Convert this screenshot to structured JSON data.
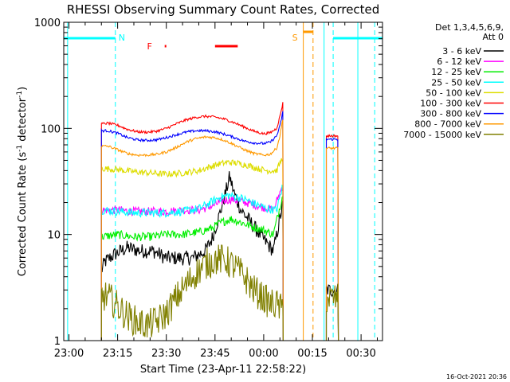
{
  "chart_data": {
    "type": "line",
    "title": "RHESSI Observing Summary Count Rates, Corrected",
    "xlabel": "Start Time (23-Apr-11 22:58:22)",
    "ylabel_main": "Corrected Count Rate (s",
    "ylabel_sup1": "-1",
    "ylabel_mid": " detector",
    "ylabel_sup2": "-1",
    "ylabel_end": ")",
    "x_unit": "minutes since 23:00",
    "xlim": [
      -1.6,
      96.6
    ],
    "ylim": [
      1,
      1000
    ],
    "y_scale": "log",
    "x_ticks": [
      {
        "x": 0,
        "label": "23:00"
      },
      {
        "x": 15,
        "label": "23:15"
      },
      {
        "x": 30,
        "label": "23:30"
      },
      {
        "x": 45,
        "label": "23:45"
      },
      {
        "x": 60,
        "label": "00:00"
      },
      {
        "x": 75,
        "label": "00:15"
      },
      {
        "x": 90,
        "label": "00:30"
      }
    ],
    "y_ticks": [
      {
        "y": 1,
        "label": "1"
      },
      {
        "y": 10,
        "label": "10"
      },
      {
        "y": 100,
        "label": "100"
      },
      {
        "y": 1000,
        "label": "1000"
      }
    ],
    "legend_header": [
      "Det 1,3,4,5,6,9,",
      "Att 0"
    ],
    "legend_position": "right",
    "footer_timestamp": "16-Oct-2021 20:36",
    "data_gap": [
      66.2,
      79.3
    ],
    "series": [
      {
        "name": "3 - 6 keV",
        "color": "#000000",
        "noise": 0.07,
        "segments": [
          {
            "x": [
              10,
              11,
              14,
              18,
              22,
              26,
              30,
              34,
              38,
              42,
              44,
              46,
              48,
              49.5,
              51,
              53,
              56,
              60,
              63,
              66
            ],
            "y": [
              4.5,
              5.5,
              6.5,
              7.5,
              7,
              7,
              6,
              6,
              6,
              7,
              9,
              14,
              23,
              35,
              24,
              17,
              13,
              9,
              7,
              20
            ]
          },
          {
            "x": [
              79.3,
              83
            ],
            "y": [
              3,
              3
            ]
          }
        ]
      },
      {
        "name": "6 - 12 keV",
        "color": "#ff00ff",
        "noise": 0.04,
        "segments": [
          {
            "x": [
              10,
              15,
              20,
              25,
              30,
              35,
              40,
              44,
              47,
              50,
              53,
              56,
              60,
              63,
              66
            ],
            "y": [
              17,
              17,
              16.5,
              16.5,
              16.5,
              17,
              17,
              18.5,
              20.5,
              21.5,
              20.5,
              19.5,
              18,
              17,
              30
            ]
          }
        ]
      },
      {
        "name": "12 - 25 keV",
        "color": "#00ee00",
        "noise": 0.04,
        "segments": [
          {
            "x": [
              10,
              15,
              20,
              25,
              30,
              35,
              40,
              44,
              47,
              50,
              53,
              56,
              60,
              63,
              66
            ],
            "y": [
              9.5,
              10,
              9.5,
              9.5,
              10,
              10,
              10.5,
              11.5,
              13,
              14,
              13,
              12,
              11,
              10,
              25
            ]
          }
        ]
      },
      {
        "name": "25 - 50 keV",
        "color": "#00ffff",
        "noise": 0.04,
        "segments": [
          {
            "x": [
              10,
              15,
              20,
              25,
              30,
              35,
              40,
              43,
              46,
              49,
              52,
              55,
              58,
              61,
              64,
              66
            ],
            "y": [
              17,
              16.5,
              16,
              16,
              16,
              16.5,
              17.5,
              19.5,
              22,
              23.5,
              22.5,
              21,
              19,
              17.5,
              17,
              30
            ]
          }
        ]
      },
      {
        "name": "50 - 100 keV",
        "color": "#dddd00",
        "noise": 0.03,
        "segments": [
          {
            "x": [
              10,
              15,
              20,
              25,
              30,
              35,
              40,
              43,
              46,
              49,
              52,
              55,
              58,
              61,
              64,
              66
            ],
            "y": [
              42,
              41,
              39,
              38,
              37,
              38,
              40,
              43,
              46,
              48,
              47,
              45,
              42,
              40,
              40,
              55
            ]
          }
        ]
      },
      {
        "name": "100 - 300 keV",
        "color": "#ff0000",
        "noise": 0.012,
        "segments": [
          {
            "x": [
              10,
              12,
              15,
              18,
              21,
              24,
              27,
              30,
              33,
              36,
              39,
              42,
              45,
              48,
              51,
              54,
              57,
              60,
              62,
              64,
              65,
              66
            ],
            "y": [
              110,
              112,
              107,
              98,
              93,
              92,
              94,
              100,
              110,
              120,
              127,
              130,
              128,
              122,
              113,
              103,
              94,
              89,
              91,
              100,
              130,
              180
            ]
          },
          {
            "x": [
              79.3,
              83
            ],
            "y": [
              85,
              85
            ]
          }
        ]
      },
      {
        "name": "300 - 800 keV",
        "color": "#0000ff",
        "noise": 0.012,
        "segments": [
          {
            "x": [
              10,
              12,
              15,
              18,
              21,
              24,
              27,
              30,
              33,
              36,
              39,
              42,
              45,
              48,
              51,
              54,
              57,
              60,
              62,
              64,
              65,
              66
            ],
            "y": [
              95,
              95,
              90,
              82,
              78,
              77,
              78,
              82,
              87,
              92,
              95,
              95,
              93,
              88,
              82,
              76,
              73,
              72,
              74,
              85,
              105,
              150
            ]
          },
          {
            "x": [
              79.3,
              83
            ],
            "y": [
              79,
              79
            ]
          }
        ]
      },
      {
        "name": "800 - 7000 keV",
        "color": "#ff9900",
        "noise": 0.012,
        "segments": [
          {
            "x": [
              10,
              12,
              15,
              18,
              21,
              24,
              27,
              30,
              33,
              36,
              39,
              42,
              45,
              48,
              51,
              54,
              57,
              60,
              62,
              64,
              65,
              66
            ],
            "y": [
              68,
              68,
              63,
              58,
              56,
              56,
              57,
              60,
              66,
              74,
              80,
              83,
              82,
              77,
              70,
              63,
              58,
              56,
              57,
              65,
              85,
              130
            ]
          },
          {
            "x": [
              79.3,
              83
            ],
            "y": [
              65,
              65
            ]
          }
        ]
      },
      {
        "name": "7000 - 15000 keV",
        "color": "#808000",
        "noise": 0.15,
        "segments": [
          {
            "x": [
              10,
              12,
              15,
              18,
              21,
              24,
              27,
              30,
              33,
              36,
              39,
              42,
              45,
              48,
              51,
              54,
              57,
              60,
              62,
              64,
              65,
              66
            ],
            "y": [
              2.6,
              2.6,
              2.1,
              1.7,
              1.5,
              1.4,
              1.5,
              1.8,
              2.5,
              3.3,
              4.3,
              5.2,
              5.8,
              5.8,
              5.0,
              4.0,
              3.0,
              2.5,
              2.2,
              2.2,
              2.0,
              2.0
            ]
          },
          {
            "x": [
              79.3,
              83
            ],
            "y": [
              2.5,
              2.5
            ]
          }
        ]
      }
    ],
    "markers": [
      {
        "label": "N",
        "color": "#00ffff",
        "x": 14.3
      },
      {
        "label": "S",
        "color": "#ff9900",
        "x": 72.2
      }
    ],
    "flare_label": {
      "label": "F",
      "color": "#ff0000",
      "x": 27
    },
    "flare_bars": [
      {
        "x0": 29.5,
        "x1": 30,
        "color": "#ff0000"
      },
      {
        "x0": 45,
        "x1": 52,
        "color": "#ff0000"
      }
    ],
    "night_segments": [
      {
        "x0": -1.6,
        "x1": 14.3
      },
      {
        "x0": 81.4,
        "x1": 96.6
      }
    ],
    "saa_bar": {
      "x0": 72.2,
      "x1": 75.2
    },
    "vertical_lines": [
      {
        "x": -0.4,
        "color": "#00ffff",
        "dash": false
      },
      {
        "x": 14.3,
        "color": "#00ffff",
        "dash": true
      },
      {
        "x": 72.2,
        "color": "#ff9900",
        "dash": false
      },
      {
        "x": 75.2,
        "color": "#ff9900",
        "dash": true
      },
      {
        "x": 78.6,
        "color": "#00ffff",
        "dash": false
      },
      {
        "x": 81.4,
        "color": "#00ffff",
        "dash": true
      },
      {
        "x": 89.0,
        "color": "#00ffff",
        "dash": false
      },
      {
        "x": 94.2,
        "color": "#00ffff",
        "dash": true
      }
    ]
  }
}
